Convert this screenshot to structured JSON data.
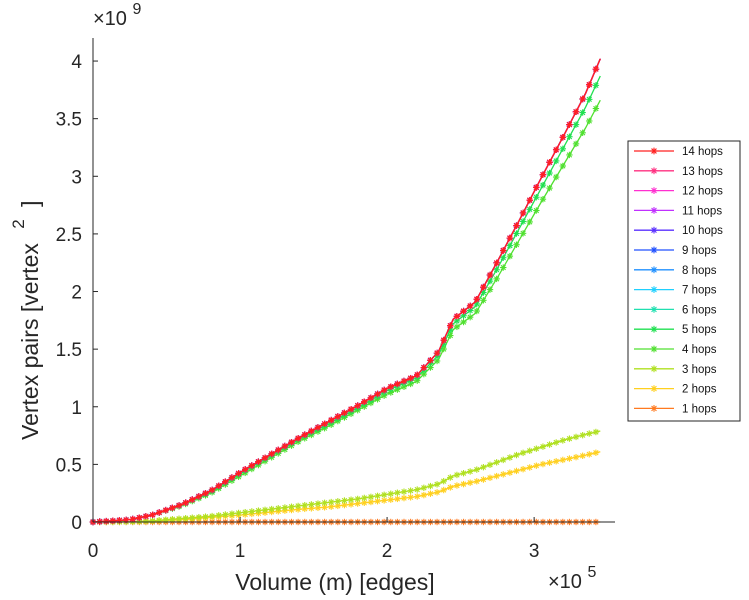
{
  "chart_data": {
    "type": "line",
    "xlabel": "Volume (m) [edges]",
    "ylabel": "Vertex pairs [vertex",
    "ylabel_superscript": "2",
    "ylabel_close": "]",
    "x_exponent": {
      "base": "×10",
      "power": "5"
    },
    "y_exponent": {
      "base": "×10",
      "power": "9"
    },
    "xlim": [
      0,
      3.55
    ],
    "ylim": [
      0,
      4.2
    ],
    "x_ticks": [
      0,
      1,
      2,
      3
    ],
    "x_tick_labels": [
      "0",
      "1",
      "2",
      "3"
    ],
    "y_ticks": [
      0,
      0.5,
      1,
      1.5,
      2,
      2.5,
      3,
      3.5,
      4
    ],
    "y_tick_labels": [
      "0",
      "0.5",
      "1",
      "1.5",
      "2",
      "2.5",
      "3",
      "3.5",
      "4"
    ],
    "grid": false,
    "legend_placement": "outside-right",
    "x": [
      0.0,
      0.25,
      0.4,
      0.6,
      0.8,
      1.0,
      1.2,
      1.4,
      1.6,
      1.8,
      2.0,
      2.2,
      2.35,
      2.45,
      2.6,
      2.75,
      2.9,
      3.05,
      3.2,
      3.35,
      3.45
    ],
    "series": [
      {
        "name": "14 hops",
        "color": "#ff2020",
        "values": [
          0,
          0.02,
          0.06,
          0.15,
          0.27,
          0.43,
          0.58,
          0.73,
          0.87,
          1.01,
          1.16,
          1.27,
          1.48,
          1.76,
          1.91,
          2.26,
          2.62,
          2.99,
          3.35,
          3.72,
          4.02
        ]
      },
      {
        "name": "13 hops",
        "color": "#ff3080",
        "values": [
          0,
          0.02,
          0.06,
          0.15,
          0.27,
          0.43,
          0.58,
          0.73,
          0.87,
          1.01,
          1.16,
          1.27,
          1.48,
          1.76,
          1.91,
          2.26,
          2.62,
          2.99,
          3.35,
          3.72,
          4.02
        ]
      },
      {
        "name": "12 hops",
        "color": "#ff30d0",
        "values": [
          0,
          0.02,
          0.06,
          0.15,
          0.27,
          0.43,
          0.58,
          0.73,
          0.87,
          1.01,
          1.16,
          1.27,
          1.48,
          1.76,
          1.91,
          2.26,
          2.62,
          2.99,
          3.35,
          3.72,
          4.02
        ]
      },
      {
        "name": "11 hops",
        "color": "#c030ff",
        "values": [
          0,
          0.02,
          0.06,
          0.15,
          0.27,
          0.43,
          0.58,
          0.73,
          0.87,
          1.01,
          1.16,
          1.27,
          1.48,
          1.76,
          1.91,
          2.26,
          2.62,
          2.99,
          3.35,
          3.72,
          4.02
        ]
      },
      {
        "name": "10 hops",
        "color": "#5a30ff",
        "values": [
          0,
          0.02,
          0.06,
          0.15,
          0.27,
          0.43,
          0.58,
          0.73,
          0.87,
          1.01,
          1.16,
          1.27,
          1.48,
          1.76,
          1.91,
          2.26,
          2.62,
          2.99,
          3.35,
          3.72,
          4.02
        ]
      },
      {
        "name": "9 hops",
        "color": "#2050ff",
        "values": [
          0,
          0.02,
          0.06,
          0.15,
          0.27,
          0.43,
          0.58,
          0.73,
          0.87,
          1.01,
          1.16,
          1.27,
          1.48,
          1.76,
          1.91,
          2.26,
          2.62,
          2.99,
          3.35,
          3.72,
          4.02
        ]
      },
      {
        "name": "8 hops",
        "color": "#2090ff",
        "values": [
          0,
          0.02,
          0.06,
          0.15,
          0.27,
          0.43,
          0.58,
          0.73,
          0.87,
          1.01,
          1.16,
          1.27,
          1.48,
          1.76,
          1.91,
          2.26,
          2.62,
          2.99,
          3.35,
          3.72,
          4.02
        ]
      },
      {
        "name": "7 hops",
        "color": "#20d0ff",
        "values": [
          0,
          0.02,
          0.06,
          0.15,
          0.27,
          0.43,
          0.58,
          0.73,
          0.87,
          1.01,
          1.16,
          1.27,
          1.48,
          1.76,
          1.91,
          2.26,
          2.62,
          2.99,
          3.35,
          3.72,
          4.02
        ]
      },
      {
        "name": "6 hops",
        "color": "#20e0b0",
        "values": [
          0,
          0.02,
          0.06,
          0.15,
          0.27,
          0.43,
          0.58,
          0.73,
          0.87,
          1.01,
          1.16,
          1.27,
          1.48,
          1.76,
          1.91,
          2.26,
          2.62,
          2.99,
          3.35,
          3.72,
          4.02
        ]
      },
      {
        "name": "5 hops",
        "color": "#20e050",
        "values": [
          0,
          0.02,
          0.06,
          0.15,
          0.26,
          0.42,
          0.57,
          0.72,
          0.85,
          0.99,
          1.14,
          1.25,
          1.45,
          1.72,
          1.87,
          2.2,
          2.55,
          2.9,
          3.25,
          3.6,
          3.87
        ]
      },
      {
        "name": "4 hops",
        "color": "#50e030",
        "values": [
          0,
          0.02,
          0.06,
          0.14,
          0.25,
          0.4,
          0.55,
          0.7,
          0.83,
          0.97,
          1.11,
          1.22,
          1.41,
          1.67,
          1.81,
          2.12,
          2.45,
          2.78,
          3.1,
          3.42,
          3.66
        ]
      },
      {
        "name": "3 hops",
        "color": "#b0e020",
        "values": [
          0,
          0.003,
          0.01,
          0.03,
          0.05,
          0.08,
          0.11,
          0.14,
          0.17,
          0.2,
          0.24,
          0.28,
          0.33,
          0.4,
          0.45,
          0.52,
          0.59,
          0.65,
          0.71,
          0.76,
          0.79
        ]
      },
      {
        "name": "2 hops",
        "color": "#ffd020",
        "values": [
          0,
          0.002,
          0.008,
          0.02,
          0.04,
          0.06,
          0.085,
          0.11,
          0.13,
          0.16,
          0.19,
          0.22,
          0.26,
          0.31,
          0.35,
          0.4,
          0.45,
          0.5,
          0.54,
          0.58,
          0.61
        ]
      },
      {
        "name": "1 hops",
        "color": "#ff7a20",
        "values": [
          0,
          0,
          0,
          0,
          0,
          0,
          0,
          0,
          0,
          0,
          0,
          0,
          0,
          0,
          0,
          0,
          0,
          0,
          0,
          0,
          0
        ]
      }
    ]
  }
}
